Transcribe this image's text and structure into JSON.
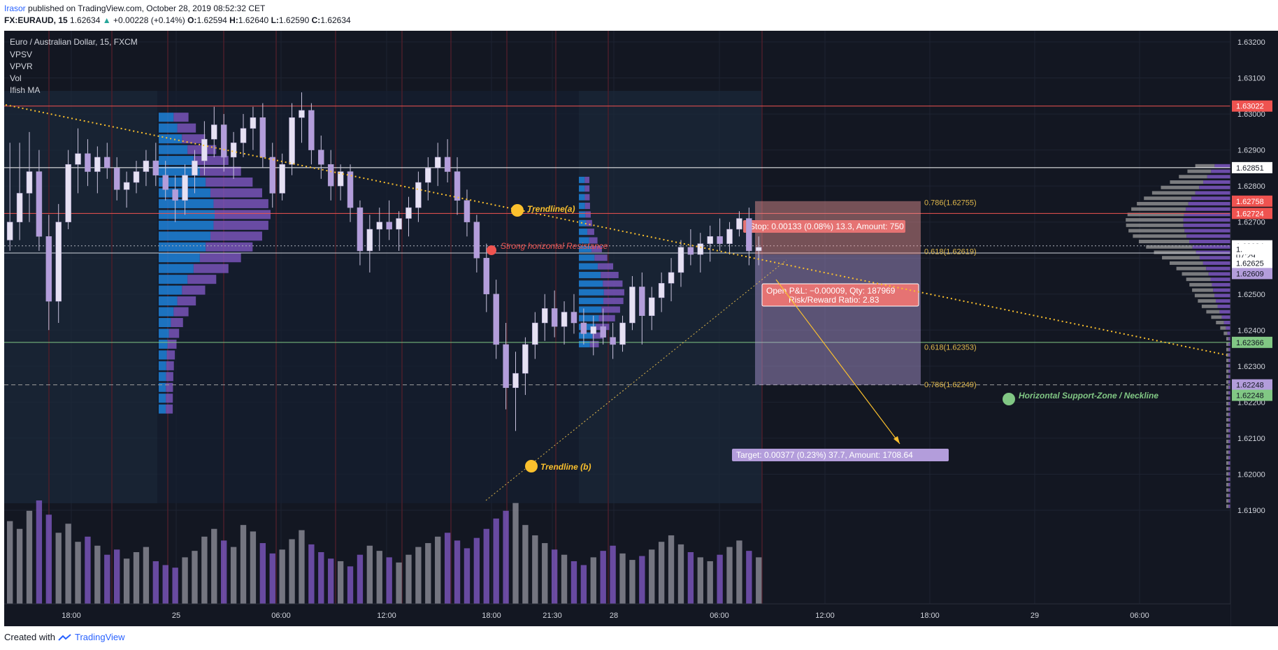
{
  "header": {
    "user": "Irasor",
    "published": "published on TradingView.com, October 28, 2019 08:52:32 CET",
    "symbol": "FX:EURAUD, 15",
    "last": "1.62634",
    "change": "+0.00228 (+0.14%)",
    "o_label": "O:",
    "o": "1.62594",
    "h_label": "H:",
    "h": "1.62640",
    "l_label": "L:",
    "l": "1.62590",
    "c_label": "C:",
    "c": "1.62634"
  },
  "legend": {
    "title": "Euro / Australian Dollar, 15, FXCM",
    "items": [
      "VPSV",
      "VPVR",
      "Vol",
      "Ifish MA"
    ]
  },
  "footer": {
    "created": "Created with",
    "brand": "TradingView"
  },
  "colors": {
    "background": "#131722",
    "grid": "#1e2331",
    "axis_text": "#d1d4dc",
    "candle_up": "#e6e1f3",
    "candle_down": "#b39ddb",
    "resistance": "#ef5350",
    "support": "#81c784",
    "trendline": "#fbc02d",
    "stop_zone": "#ef9a9a",
    "target_zone": "#b39ddb",
    "vp_blue": "#1e88e5",
    "vp_purple": "#7e57c2"
  },
  "annotations": {
    "trendline_a": "Trendline(a)",
    "trendline_b": "Trendline (b)",
    "resistance": "Strong horizontal Resistance",
    "support": "Horizontal Support-Zone / Neckline",
    "stop": "Stop: 0.00133 (0.08%) 13.3, Amount: 750",
    "target": "Target: 0.00377 (0.23%) 37.7, Amount: 1708.64",
    "pnl": "Open P&L: −0.00009, Qty: 187969",
    "rr": "Risk/Reward Ratio: 2.83",
    "fib_786_top": "0.786(1.62755)",
    "fib_618_top": "0.618(1.62619)",
    "fib_618_bot": "0.618(1.62353)",
    "fib_786_bot": "0.786(1.62249)"
  },
  "price_labels": [
    {
      "price": 1.63022,
      "text": "1.63022",
      "bg": "#ef5350",
      "fg": "#ffffff"
    },
    {
      "price": 1.62851,
      "text": "1.62851",
      "bg": "#ffffff",
      "fg": "#131722"
    },
    {
      "price": 1.62758,
      "text": "1.62758",
      "bg": "#ef5350",
      "fg": "#ffffff"
    },
    {
      "price": 1.62724,
      "text": "1.62724",
      "bg": "#ef5350",
      "fg": "#ffffff"
    },
    {
      "price": 1.62634,
      "text": "1.62634",
      "bg": "#ffffff",
      "fg": "#131722"
    },
    {
      "price": 1.62606,
      "text": "07:29",
      "bg": "#ffffff",
      "fg": "#131722"
    },
    {
      "price": 1.62625,
      "text": "1.",
      "bg": "#ffffff",
      "fg": "#131722"
    },
    {
      "price": 1.62586,
      "text": "1.62625",
      "bg": "#ffffff",
      "fg": "#131722"
    },
    {
      "price": 1.62557,
      "text": "1.62609",
      "bg": "#b39ddb",
      "fg": "#131722"
    },
    {
      "price": 1.62366,
      "text": "1.62366",
      "bg": "#81c784",
      "fg": "#131722"
    },
    {
      "price": 1.62248,
      "text": "1.62248",
      "bg": "#b39ddb",
      "fg": "#131722"
    },
    {
      "price": 1.62219,
      "text": "1.62248",
      "bg": "#81c784",
      "fg": "#131722"
    }
  ],
  "chart_data": {
    "type": "candlestick",
    "title": "Euro / Australian Dollar, 15, FXCM",
    "ylim": [
      1.6186,
      1.6328
    ],
    "y_ticks": [
      "1.63200",
      "1.63100",
      "1.63000",
      "1.62900",
      "1.62800",
      "1.62700",
      "1.62600",
      "1.62500",
      "1.62400",
      "1.62300",
      "1.62200",
      "1.62100",
      "1.62000",
      "1.61900"
    ],
    "x_ticks": [
      "18:00",
      "25",
      "06:00",
      "12:00",
      "18:00",
      "21:30",
      "28",
      "06:00",
      "12:00",
      "18:00",
      "29",
      "06:00"
    ],
    "ohlc": [
      [
        1.6265,
        1.6292,
        1.6262,
        1.627
      ],
      [
        1.627,
        1.6292,
        1.6265,
        1.6278
      ],
      [
        1.6278,
        1.6295,
        1.627,
        1.6284
      ],
      [
        1.6284,
        1.629,
        1.6262,
        1.6266
      ],
      [
        1.6266,
        1.6272,
        1.624,
        1.6248
      ],
      [
        1.6248,
        1.6275,
        1.6242,
        1.627
      ],
      [
        1.627,
        1.629,
        1.6268,
        1.6286
      ],
      [
        1.6286,
        1.6296,
        1.6278,
        1.6289
      ],
      [
        1.6289,
        1.6293,
        1.628,
        1.6284
      ],
      [
        1.6284,
        1.6291,
        1.6278,
        1.6288
      ],
      [
        1.6288,
        1.6292,
        1.6282,
        1.6285
      ],
      [
        1.6285,
        1.6288,
        1.6276,
        1.6279
      ],
      [
        1.6279,
        1.6284,
        1.6274,
        1.6281
      ],
      [
        1.6281,
        1.6287,
        1.6278,
        1.6284
      ],
      [
        1.6284,
        1.629,
        1.628,
        1.6287
      ],
      [
        1.6287,
        1.6292,
        1.628,
        1.6283
      ],
      [
        1.6283,
        1.6287,
        1.6276,
        1.6279
      ],
      [
        1.6279,
        1.6283,
        1.627,
        1.6276
      ],
      [
        1.6276,
        1.6286,
        1.6272,
        1.6283
      ],
      [
        1.6283,
        1.629,
        1.6278,
        1.6287
      ],
      [
        1.6287,
        1.6298,
        1.6283,
        1.6293
      ],
      [
        1.6293,
        1.6302,
        1.6288,
        1.6297
      ],
      [
        1.6297,
        1.63,
        1.6284,
        1.6288
      ],
      [
        1.6288,
        1.6295,
        1.6282,
        1.6292
      ],
      [
        1.6292,
        1.63,
        1.6288,
        1.6296
      ],
      [
        1.6296,
        1.6302,
        1.629,
        1.6299
      ],
      [
        1.6299,
        1.6303,
        1.6285,
        1.6288
      ],
      [
        1.6288,
        1.6292,
        1.6274,
        1.6278
      ],
      [
        1.6278,
        1.6289,
        1.6276,
        1.6286
      ],
      [
        1.6286,
        1.6303,
        1.6283,
        1.6299
      ],
      [
        1.6299,
        1.6306,
        1.6292,
        1.6301
      ],
      [
        1.6301,
        1.6303,
        1.6286,
        1.629
      ],
      [
        1.629,
        1.6294,
        1.6282,
        1.6286
      ],
      [
        1.6286,
        1.629,
        1.6276,
        1.628
      ],
      [
        1.628,
        1.6286,
        1.6276,
        1.6284
      ],
      [
        1.6284,
        1.6286,
        1.627,
        1.6274
      ],
      [
        1.6274,
        1.6276,
        1.6258,
        1.6262
      ],
      [
        1.6262,
        1.6272,
        1.6256,
        1.6268
      ],
      [
        1.6268,
        1.6274,
        1.6262,
        1.627
      ],
      [
        1.627,
        1.6276,
        1.6265,
        1.6268
      ],
      [
        1.6268,
        1.6273,
        1.6262,
        1.6271
      ],
      [
        1.6271,
        1.6277,
        1.6266,
        1.6274
      ],
      [
        1.6274,
        1.6284,
        1.627,
        1.6281
      ],
      [
        1.6281,
        1.6288,
        1.6276,
        1.6285
      ],
      [
        1.6285,
        1.6292,
        1.628,
        1.6288
      ],
      [
        1.6288,
        1.6293,
        1.6281,
        1.6284
      ],
      [
        1.6284,
        1.6288,
        1.6272,
        1.6276
      ],
      [
        1.6276,
        1.6279,
        1.6266,
        1.627
      ],
      [
        1.627,
        1.6272,
        1.6256,
        1.626
      ],
      [
        1.626,
        1.6264,
        1.6245,
        1.625
      ],
      [
        1.625,
        1.6254,
        1.6232,
        1.6236
      ],
      [
        1.6236,
        1.6242,
        1.6218,
        1.6224
      ],
      [
        1.6224,
        1.6234,
        1.6212,
        1.6228
      ],
      [
        1.6228,
        1.6238,
        1.6222,
        1.6236
      ],
      [
        1.6236,
        1.6245,
        1.6232,
        1.6242
      ],
      [
        1.6242,
        1.625,
        1.6237,
        1.6246
      ],
      [
        1.6246,
        1.6251,
        1.6238,
        1.6241
      ],
      [
        1.6241,
        1.6248,
        1.6236,
        1.6245
      ],
      [
        1.6245,
        1.625,
        1.6239,
        1.6242
      ],
      [
        1.6242,
        1.6246,
        1.6236,
        1.6239
      ],
      [
        1.6239,
        1.6244,
        1.6233,
        1.6241
      ],
      [
        1.6241,
        1.6246,
        1.6236,
        1.6238
      ],
      [
        1.6238,
        1.6242,
        1.6232,
        1.6236
      ],
      [
        1.6236,
        1.6244,
        1.6234,
        1.6242
      ],
      [
        1.6242,
        1.6255,
        1.624,
        1.6252
      ],
      [
        1.6252,
        1.6256,
        1.6236,
        1.6244
      ],
      [
        1.6244,
        1.6252,
        1.624,
        1.6249
      ],
      [
        1.6249,
        1.6256,
        1.6245,
        1.6253
      ],
      [
        1.6253,
        1.626,
        1.6248,
        1.6256
      ],
      [
        1.6256,
        1.6265,
        1.6252,
        1.6263
      ],
      [
        1.6263,
        1.6268,
        1.6258,
        1.6261
      ],
      [
        1.6261,
        1.6267,
        1.6256,
        1.6264
      ],
      [
        1.6264,
        1.6269,
        1.6259,
        1.6266
      ],
      [
        1.6266,
        1.6271,
        1.6262,
        1.6264
      ],
      [
        1.6264,
        1.627,
        1.6261,
        1.6268
      ],
      [
        1.6268,
        1.6273,
        1.6266,
        1.6271
      ],
      [
        1.6271,
        1.6274,
        1.6258,
        1.6262
      ],
      [
        1.6262,
        1.6266,
        1.6258,
        1.6263
      ]
    ],
    "volume": [
      64,
      58,
      72,
      80,
      69,
      55,
      62,
      48,
      52,
      45,
      38,
      42,
      35,
      40,
      44,
      33,
      30,
      28,
      36,
      41,
      52,
      58,
      49,
      44,
      61,
      56,
      47,
      39,
      42,
      50,
      57,
      46,
      40,
      35,
      33,
      29,
      38,
      45,
      41,
      36,
      32,
      38,
      44,
      47,
      52,
      55,
      49,
      43,
      51,
      58,
      66,
      72,
      78,
      61,
      53,
      47,
      42,
      38,
      33,
      30,
      36,
      41,
      45,
      39,
      34,
      37,
      42,
      48,
      53,
      46,
      40,
      36,
      33,
      38,
      44,
      49,
      41,
      36
    ],
    "levels": {
      "resistance_top": 1.63022,
      "white_line_1": 1.62851,
      "resistance": 1.62724,
      "support": 1.62366,
      "target_line": 1.62248
    }
  }
}
